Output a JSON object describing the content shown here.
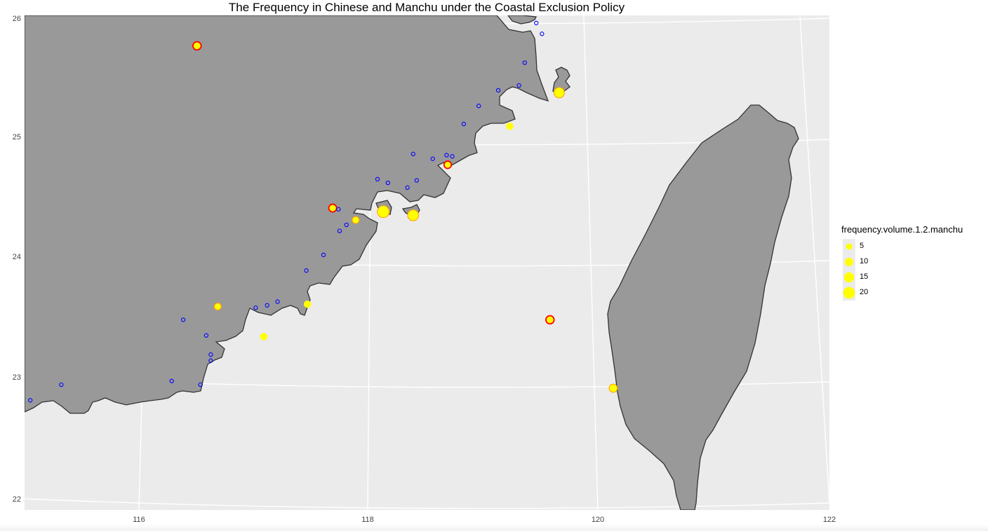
{
  "title": "The Frequency in Chinese and Manchu under the Coastal Exclusion Policy",
  "legend": {
    "title": "frequency.volume.1.2.manchu",
    "items": [
      {
        "label": "5",
        "value": 5
      },
      {
        "label": "10",
        "value": 10
      },
      {
        "label": "15",
        "value": 15
      },
      {
        "label": "20",
        "value": 20
      }
    ]
  },
  "axes": {
    "x_ticks": [
      "116",
      "118",
      "120",
      "122"
    ],
    "y_ticks": [
      "22",
      "23",
      "24",
      "25",
      "26"
    ],
    "x_range": [
      115,
      122
    ],
    "y_range": [
      22,
      26
    ]
  },
  "colors": {
    "panel_bg": "#ebebeb",
    "land": "#999999",
    "coast": "#333333",
    "grid": "#ffffff",
    "point_fill": "#ffff00",
    "point_red": "#ff0000",
    "point_blue": "#0000ff",
    "point_orange": "#ffa500"
  },
  "points": [
    {
      "lon": 116.5,
      "lat": 25.77,
      "manchu": 7,
      "stroke": "red"
    },
    {
      "lon": 117.68,
      "lat": 24.42,
      "manchu": 6,
      "stroke": "red"
    },
    {
      "lon": 117.88,
      "lat": 24.32,
      "manchu": 4,
      "stroke": "orange"
    },
    {
      "lon": 118.12,
      "lat": 24.39,
      "manchu": 20,
      "stroke": "orange"
    },
    {
      "lon": 118.38,
      "lat": 24.36,
      "manchu": 16,
      "stroke": "orange"
    },
    {
      "lon": 118.68,
      "lat": 24.78,
      "manchu": 5,
      "stroke": "red"
    },
    {
      "lon": 119.22,
      "lat": 25.1,
      "manchu": 5,
      "stroke": "none"
    },
    {
      "lon": 119.65,
      "lat": 25.38,
      "manchu": 14,
      "stroke": "orange"
    },
    {
      "lon": 116.68,
      "lat": 23.6,
      "manchu": 4,
      "stroke": "orange"
    },
    {
      "lon": 117.46,
      "lat": 23.62,
      "manchu": 5,
      "stroke": "none"
    },
    {
      "lon": 117.08,
      "lat": 23.35,
      "manchu": 5,
      "stroke": "none"
    },
    {
      "lon": 119.57,
      "lat": 23.49,
      "manchu": 7,
      "stroke": "red"
    },
    {
      "lon": 120.12,
      "lat": 22.92,
      "manchu": 7,
      "stroke": "orange"
    },
    {
      "lon": 119.45,
      "lat": 25.96,
      "manchu": 0,
      "stroke": "blue"
    },
    {
      "lon": 119.5,
      "lat": 25.87,
      "manchu": 0,
      "stroke": "blue"
    },
    {
      "lon": 119.35,
      "lat": 25.63,
      "manchu": 0,
      "stroke": "blue"
    },
    {
      "lon": 119.3,
      "lat": 25.44,
      "manchu": 0,
      "stroke": "blue"
    },
    {
      "lon": 119.12,
      "lat": 25.4,
      "manchu": 0,
      "stroke": "blue"
    },
    {
      "lon": 118.95,
      "lat": 25.27,
      "manchu": 0,
      "stroke": "blue"
    },
    {
      "lon": 118.82,
      "lat": 25.12,
      "manchu": 0,
      "stroke": "blue"
    },
    {
      "lon": 118.38,
      "lat": 24.87,
      "manchu": 0,
      "stroke": "blue"
    },
    {
      "lon": 118.55,
      "lat": 24.83,
      "manchu": 0,
      "stroke": "blue"
    },
    {
      "lon": 118.67,
      "lat": 24.86,
      "manchu": 0,
      "stroke": "blue"
    },
    {
      "lon": 118.72,
      "lat": 24.85,
      "manchu": 0,
      "stroke": "blue"
    },
    {
      "lon": 118.07,
      "lat": 24.66,
      "manchu": 0,
      "stroke": "blue"
    },
    {
      "lon": 118.16,
      "lat": 24.63,
      "manchu": 0,
      "stroke": "blue"
    },
    {
      "lon": 118.41,
      "lat": 24.65,
      "manchu": 0,
      "stroke": "blue"
    },
    {
      "lon": 118.33,
      "lat": 24.59,
      "manchu": 0,
      "stroke": "blue"
    },
    {
      "lon": 117.73,
      "lat": 24.41,
      "manchu": 0,
      "stroke": "blue"
    },
    {
      "lon": 117.8,
      "lat": 24.28,
      "manchu": 0,
      "stroke": "blue"
    },
    {
      "lon": 117.74,
      "lat": 24.23,
      "manchu": 0,
      "stroke": "blue"
    },
    {
      "lon": 117.6,
      "lat": 24.03,
      "manchu": 0,
      "stroke": "blue"
    },
    {
      "lon": 117.45,
      "lat": 23.9,
      "manchu": 0,
      "stroke": "blue"
    },
    {
      "lon": 117.2,
      "lat": 23.64,
      "manchu": 0,
      "stroke": "blue"
    },
    {
      "lon": 117.11,
      "lat": 23.61,
      "manchu": 0,
      "stroke": "blue"
    },
    {
      "lon": 117.01,
      "lat": 23.59,
      "manchu": 0,
      "stroke": "blue"
    },
    {
      "lon": 116.38,
      "lat": 23.49,
      "manchu": 0,
      "stroke": "blue"
    },
    {
      "lon": 116.58,
      "lat": 23.36,
      "manchu": 0,
      "stroke": "blue"
    },
    {
      "lon": 116.62,
      "lat": 23.2,
      "manchu": 0,
      "stroke": "blue"
    },
    {
      "lon": 116.62,
      "lat": 23.15,
      "manchu": 0,
      "stroke": "blue"
    },
    {
      "lon": 116.28,
      "lat": 22.98,
      "manchu": 0,
      "stroke": "blue"
    },
    {
      "lon": 116.53,
      "lat": 22.95,
      "manchu": 0,
      "stroke": "blue"
    },
    {
      "lon": 115.32,
      "lat": 22.95,
      "manchu": 0,
      "stroke": "blue"
    },
    {
      "lon": 115.05,
      "lat": 22.82,
      "manchu": 0,
      "stroke": "blue"
    }
  ]
}
